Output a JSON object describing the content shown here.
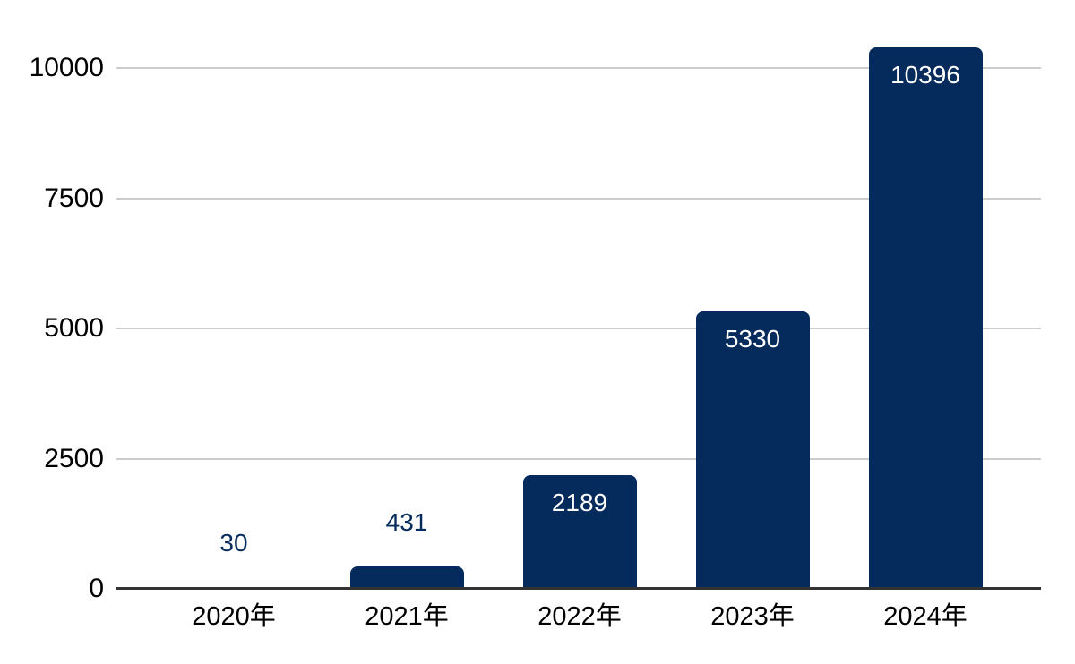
{
  "chart_data": {
    "type": "bar",
    "title": "",
    "categories": [
      "2020年",
      "2021年",
      "2022年",
      "2023年",
      "2024年"
    ],
    "values": [
      30,
      431,
      2189,
      5330,
      10396
    ],
    "data_labels": [
      "30",
      "431",
      "2189",
      "5330",
      "10396"
    ],
    "label_placement": [
      "outside",
      "outside",
      "inside",
      "inside",
      "inside"
    ],
    "xlabel": "",
    "ylabel": "",
    "ylim": [
      0,
      10000
    ],
    "yticks": [
      0,
      2500,
      5000,
      7500,
      10000
    ],
    "ytick_labels": [
      "0",
      "2500",
      "5000",
      "7500",
      "10000"
    ],
    "grid": true,
    "legend_position": "none",
    "colors": {
      "bar": "#052b5c",
      "label_inside": "#ffffff",
      "label_outside": "#052b5c",
      "axis_text": "#000000",
      "gridline": "#cccccc",
      "baseline": "#333333",
      "background": "#ffffff"
    }
  }
}
